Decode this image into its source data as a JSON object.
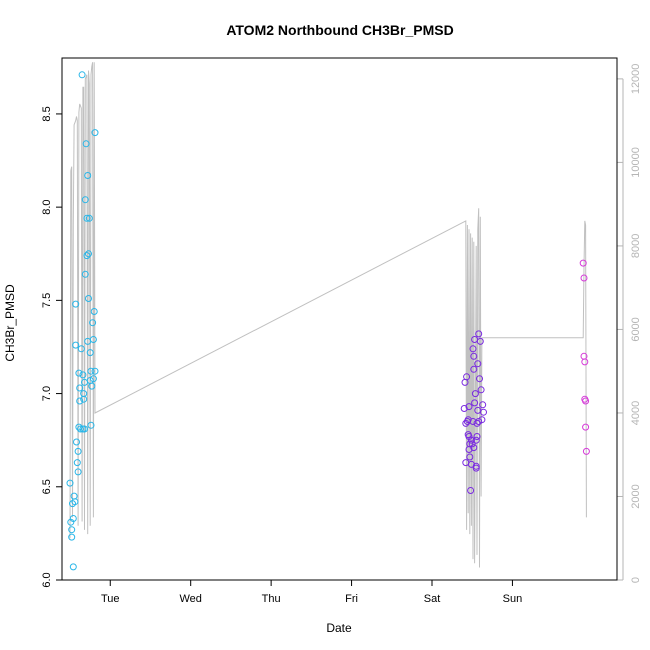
{
  "chart_data": {
    "type": "scatter",
    "title": "ATOM2 Northbound CH3Br_PMSD",
    "xlabel": "Date",
    "ylabel": "CH3Br_PMSD",
    "x_unit": "days from Monday 00:00",
    "x_ticks": [
      {
        "x": 1,
        "label": "Tue"
      },
      {
        "x": 2,
        "label": "Wed"
      },
      {
        "x": 3,
        "label": "Thu"
      },
      {
        "x": 4,
        "label": "Fri"
      },
      {
        "x": 5,
        "label": "Sat"
      },
      {
        "x": 6,
        "label": "Sun"
      }
    ],
    "xlim": [
      0.4,
      7.3
    ],
    "ylim": [
      6.0,
      8.8
    ],
    "y_ticks": [
      "6.0",
      "6.5",
      "7.0",
      "7.5",
      "8.0",
      "8.5"
    ],
    "y2lim": [
      0,
      12500
    ],
    "y2_ticks": [
      "0",
      "2000",
      "4000",
      "6000",
      "8000",
      "10000",
      "12000"
    ],
    "grid": false,
    "colors": {
      "series1": "#29b6e8",
      "series2": "#7a2ae0",
      "series3": "#d63ad9",
      "line": "#c0c0c0"
    },
    "series": [
      {
        "name": "",
        "color": "#29b6e8",
        "points": [
          [
            0.5,
            6.52
          ],
          [
            0.51,
            6.31
          ],
          [
            0.52,
            6.27
          ],
          [
            0.52,
            6.23
          ],
          [
            0.53,
            6.41
          ],
          [
            0.54,
            6.07
          ],
          [
            0.54,
            6.33
          ],
          [
            0.55,
            6.45
          ],
          [
            0.56,
            6.42
          ],
          [
            0.57,
            7.48
          ],
          [
            0.57,
            7.26
          ],
          [
            0.58,
            6.74
          ],
          [
            0.59,
            6.63
          ],
          [
            0.6,
            6.58
          ],
          [
            0.6,
            6.69
          ],
          [
            0.61,
            7.11
          ],
          [
            0.61,
            6.82
          ],
          [
            0.62,
            6.96
          ],
          [
            0.62,
            7.03
          ],
          [
            0.63,
            6.81
          ],
          [
            0.64,
            7.24
          ],
          [
            0.65,
            8.71
          ],
          [
            0.66,
            6.81
          ],
          [
            0.66,
            7.1
          ],
          [
            0.67,
            6.97
          ],
          [
            0.67,
            7.0
          ],
          [
            0.68,
            7.06
          ],
          [
            0.68,
            6.81
          ],
          [
            0.69,
            8.04
          ],
          [
            0.69,
            7.64
          ],
          [
            0.7,
            8.34
          ],
          [
            0.71,
            7.94
          ],
          [
            0.71,
            7.74
          ],
          [
            0.72,
            8.17
          ],
          [
            0.72,
            7.28
          ],
          [
            0.73,
            7.75
          ],
          [
            0.73,
            7.51
          ],
          [
            0.74,
            7.94
          ],
          [
            0.75,
            7.22
          ],
          [
            0.75,
            7.07
          ],
          [
            0.76,
            7.12
          ],
          [
            0.76,
            6.83
          ],
          [
            0.77,
            7.04
          ],
          [
            0.78,
            7.38
          ],
          [
            0.79,
            7.29
          ],
          [
            0.79,
            7.08
          ],
          [
            0.8,
            7.44
          ],
          [
            0.81,
            7.12
          ],
          [
            0.81,
            8.4
          ]
        ]
      },
      {
        "name": "",
        "color": "#7a2ae0",
        "points": [
          [
            5.4,
            6.92
          ],
          [
            5.41,
            7.06
          ],
          [
            5.42,
            6.84
          ],
          [
            5.42,
            6.63
          ],
          [
            5.43,
            7.09
          ],
          [
            5.44,
            6.85
          ],
          [
            5.45,
            6.78
          ],
          [
            5.45,
            6.86
          ],
          [
            5.46,
            6.77
          ],
          [
            5.46,
            6.93
          ],
          [
            5.47,
            6.73
          ],
          [
            5.47,
            6.66
          ],
          [
            5.48,
            6.48
          ],
          [
            5.49,
            6.75
          ],
          [
            5.49,
            6.62
          ],
          [
            5.5,
            6.73
          ],
          [
            5.51,
            6.85
          ],
          [
            5.51,
            7.24
          ],
          [
            5.52,
            7.13
          ],
          [
            5.52,
            7.2
          ],
          [
            5.53,
            6.95
          ],
          [
            5.53,
            7.29
          ],
          [
            5.54,
            7.0
          ],
          [
            5.55,
            6.61
          ],
          [
            5.55,
            6.6
          ],
          [
            5.56,
            6.77
          ],
          [
            5.56,
            6.84
          ],
          [
            5.57,
            7.16
          ],
          [
            5.57,
            6.91
          ],
          [
            5.58,
            7.32
          ],
          [
            5.58,
            6.85
          ],
          [
            5.59,
            7.08
          ],
          [
            5.6,
            7.28
          ],
          [
            5.61,
            7.02
          ],
          [
            5.62,
            6.86
          ],
          [
            5.63,
            6.94
          ],
          [
            5.64,
            6.9
          ],
          [
            5.52,
            6.71
          ],
          [
            5.55,
            6.75
          ],
          [
            5.46,
            6.7
          ]
        ]
      },
      {
        "name": "",
        "color": "#d63ad9",
        "points": [
          [
            6.88,
            7.7
          ],
          [
            6.89,
            7.62
          ],
          [
            6.89,
            7.2
          ],
          [
            6.9,
            7.17
          ],
          [
            6.9,
            6.97
          ],
          [
            6.91,
            6.96
          ],
          [
            6.91,
            6.82
          ],
          [
            6.92,
            6.69
          ]
        ]
      }
    ],
    "right_axis_line": {
      "description": "trace on right axis",
      "points": [
        [
          0.5,
          1000
        ],
        [
          0.51,
          9800
        ],
        [
          0.52,
          9900
        ],
        [
          0.53,
          1500
        ],
        [
          0.54,
          8500
        ],
        [
          0.55,
          10900
        ],
        [
          0.57,
          11000
        ],
        [
          0.58,
          11100
        ],
        [
          0.59,
          11000
        ],
        [
          0.6,
          1300
        ],
        [
          0.61,
          11200
        ],
        [
          0.62,
          11400
        ],
        [
          0.64,
          11300
        ],
        [
          0.65,
          1400
        ],
        [
          0.66,
          11800
        ],
        [
          0.67,
          11800
        ],
        [
          0.68,
          1200
        ],
        [
          0.69,
          12000
        ],
        [
          0.71,
          12100
        ],
        [
          0.72,
          1100
        ],
        [
          0.73,
          12200
        ],
        [
          0.74,
          11900
        ],
        [
          0.75,
          1300
        ],
        [
          0.76,
          12100
        ],
        [
          0.77,
          12300
        ],
        [
          0.78,
          12400
        ],
        [
          0.79,
          1500
        ],
        [
          0.8,
          12400
        ],
        [
          0.81,
          4000
        ],
        [
          5.42,
          8600
        ],
        [
          5.43,
          1200
        ],
        [
          5.44,
          8500
        ],
        [
          5.45,
          1600
        ],
        [
          5.46,
          8400
        ],
        [
          5.47,
          1100
        ],
        [
          5.48,
          8300
        ],
        [
          5.49,
          1300
        ],
        [
          5.5,
          8200
        ],
        [
          5.51,
          500
        ],
        [
          5.52,
          8100
        ],
        [
          5.53,
          400
        ],
        [
          5.55,
          8000
        ],
        [
          5.56,
          600
        ],
        [
          5.57,
          8400
        ],
        [
          5.58,
          8900
        ],
        [
          5.59,
          300
        ],
        [
          5.6,
          8700
        ],
        [
          5.61,
          2000
        ],
        [
          5.62,
          5800
        ],
        [
          6.88,
          5800
        ],
        [
          6.89,
          7500
        ],
        [
          6.9,
          8600
        ],
        [
          6.91,
          8500
        ],
        [
          6.92,
          1500
        ]
      ]
    }
  }
}
